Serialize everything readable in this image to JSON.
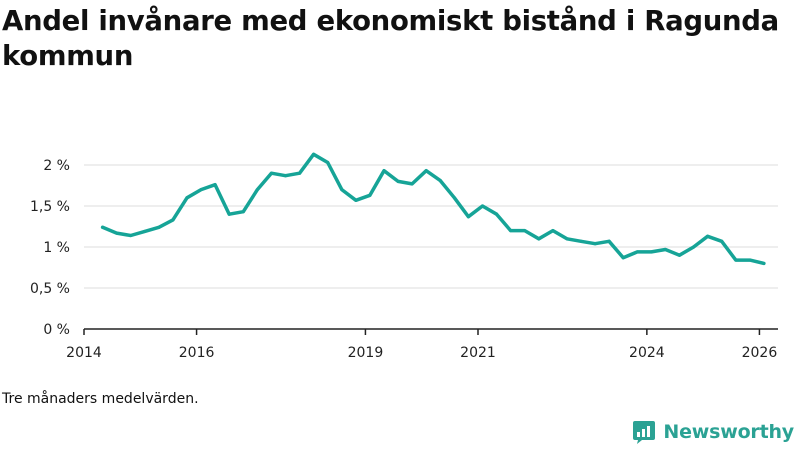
{
  "title": "Andel invånare med ekonomiskt bistånd i Ragunda kommun",
  "footnote": "Tre månaders medelvärden.",
  "brand": {
    "name": "Newsworthy",
    "icon": "newsworthy-logo-icon"
  },
  "colors": {
    "line": "#16a497",
    "grid": "#dddddd",
    "axis": "#222222",
    "brand": "#2ba294"
  },
  "chart_data": {
    "type": "line",
    "title": "Andel invånare med ekonomiskt bistånd i Ragunda kommun",
    "xlabel": "",
    "ylabel": "",
    "ylim": [
      0,
      2
    ],
    "xlim": [
      2014,
      2026.33
    ],
    "y_ticks": [
      {
        "value": 0,
        "label": "0 %"
      },
      {
        "value": 0.5,
        "label": "0,5 %"
      },
      {
        "value": 1,
        "label": "1 %"
      },
      {
        "value": 1.5,
        "label": "1,5 %"
      },
      {
        "value": 2,
        "label": "2 %"
      }
    ],
    "x_ticks": [
      {
        "value": 2014,
        "label": "2014"
      },
      {
        "value": 2016,
        "label": "2016"
      },
      {
        "value": 2019,
        "label": "2019"
      },
      {
        "value": 2021,
        "label": "2021"
      },
      {
        "value": 2024,
        "label": "2024"
      },
      {
        "value": 2026,
        "label": "2026"
      }
    ],
    "grid": true,
    "series": [
      {
        "name": "Andel invånare med ekonomiskt bistånd",
        "x": [
          2014.33,
          2014.58,
          2014.83,
          2015.08,
          2015.33,
          2015.58,
          2015.83,
          2016.08,
          2016.33,
          2016.58,
          2016.83,
          2017.08,
          2017.33,
          2017.58,
          2017.83,
          2018.08,
          2018.33,
          2018.58,
          2018.83,
          2019.08,
          2019.33,
          2019.58,
          2019.83,
          2020.08,
          2020.33,
          2020.58,
          2020.83,
          2021.08,
          2021.33,
          2021.58,
          2021.83,
          2022.08,
          2022.33,
          2022.58,
          2022.83,
          2023.08,
          2023.33,
          2023.58,
          2023.83,
          2024.08,
          2024.33,
          2024.58,
          2024.83,
          2025.08,
          2025.33,
          2025.58,
          2025.83,
          2026.08
        ],
        "values": [
          1.24,
          1.17,
          1.14,
          1.19,
          1.24,
          1.33,
          1.6,
          1.7,
          1.76,
          1.4,
          1.43,
          1.7,
          1.9,
          1.87,
          1.9,
          2.13,
          2.03,
          1.7,
          1.57,
          1.63,
          1.93,
          1.8,
          1.77,
          1.93,
          1.81,
          1.6,
          1.37,
          1.5,
          1.4,
          1.2,
          1.2,
          1.1,
          1.2,
          1.1,
          1.07,
          1.04,
          1.07,
          0.87,
          0.94,
          0.94,
          0.97,
          0.9,
          1.0,
          1.13,
          1.07,
          0.84,
          0.84,
          0.8
        ]
      }
    ]
  }
}
